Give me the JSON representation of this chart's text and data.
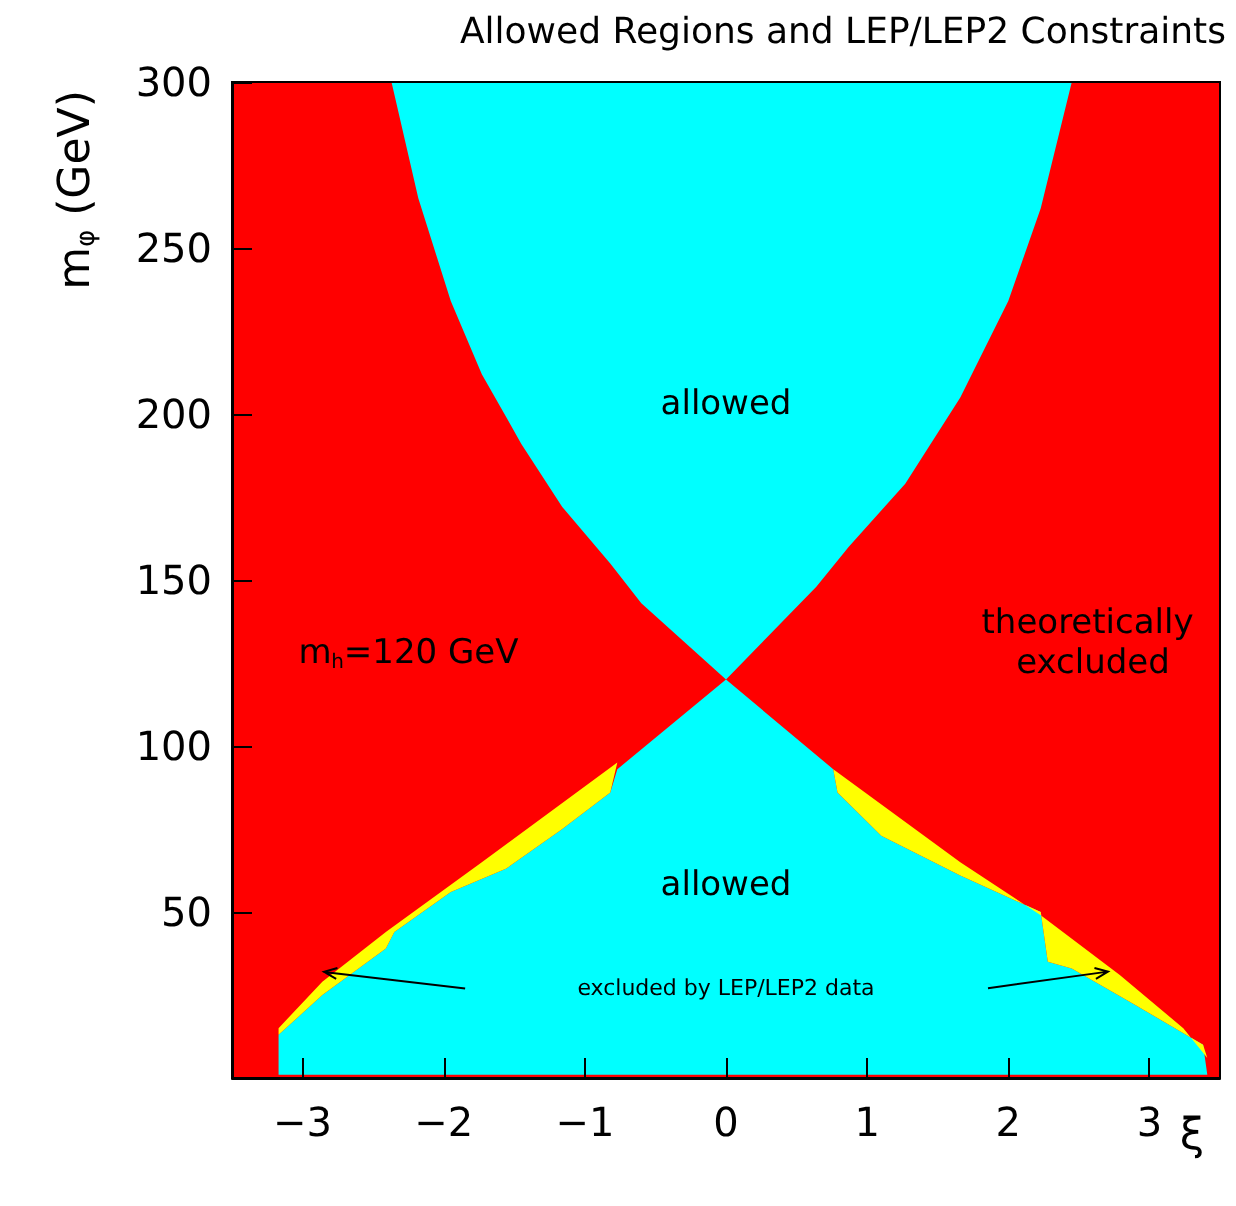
{
  "chart_data": {
    "type": "area",
    "title": "Allowed Regions and LEP/LEP2 Constraints",
    "xlabel": "ξ",
    "ylabel": "m$_{φ}$ (GeV)",
    "xlim": [
      -3.5,
      3.5
    ],
    "ylim": [
      0,
      300
    ],
    "xticks": [
      -3,
      -2,
      -1,
      0,
      1,
      2,
      3
    ],
    "yticks": [
      50,
      100,
      150,
      200,
      250,
      300
    ],
    "grid": false,
    "bands": [
      {
        "axis": "x",
        "from": -3.5,
        "to": 3.5,
        "color": "#ff0000"
      }
    ],
    "series": [
      {
        "color": "#00ffff",
        "x": [
          -2.37,
          -2.18,
          -1.95,
          -1.73,
          -1.45,
          -1.16,
          -0.82,
          -0.6,
          0,
          0.64,
          0.87,
          1.27,
          1.66,
          2.0,
          2.23,
          2.45
        ],
        "values": [
          300,
          265,
          234,
          212,
          191,
          172,
          155,
          143,
          120,
          148,
          160,
          179,
          205,
          234,
          262,
          300
        ]
      },
      {
        "color": "#00ffff",
        "x": [
          0,
          -0.77,
          -0.82,
          -1.16,
          -1.56,
          -1.95,
          -2.35,
          -2.41,
          -2.86,
          -3.17,
          -3.17,
          3.41,
          3.38,
          2.9,
          2.45,
          2.28,
          2.23,
          1.66,
          1.1,
          0.79,
          0.76
        ],
        "values": [
          120,
          93,
          86,
          75,
          63,
          56,
          44,
          39,
          25,
          13,
          1,
          1,
          10,
          22,
          33,
          35,
          50,
          61,
          73,
          86,
          93
        ]
      },
      {
        "color": "#ffff00",
        "x": [
          -0.77,
          -1.73,
          -2.41,
          -2.86,
          -3.17,
          -3.17,
          -2.86,
          -2.41,
          -2.35,
          -1.95,
          -1.56,
          -1.16,
          -0.82
        ],
        "values": [
          95,
          65,
          44,
          29,
          15,
          13,
          25,
          39,
          44,
          56,
          63,
          75,
          86
        ]
      },
      {
        "color": "#ffff00",
        "x": [
          0.76,
          1.66,
          2.23,
          2.79,
          3.24,
          3.41,
          3.38,
          2.9,
          2.45,
          2.28,
          2.23,
          1.66,
          1.1,
          0.79
        ],
        "values": [
          93,
          65,
          49,
          31,
          15,
          6,
          10,
          22,
          33,
          35,
          50,
          61,
          73,
          86
        ]
      }
    ],
    "annotations": [
      "allowed",
      "allowed",
      "m$_{h}$=120 GeV",
      "theoretically excluded",
      "excluded by LEP/LEP2 data"
    ]
  }
}
